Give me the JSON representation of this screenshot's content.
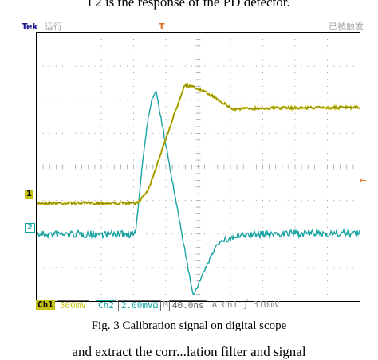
{
  "header_text": "l 2 is the response of the PD detector.",
  "scope": {
    "brand": "Tek",
    "run_state": "运行",
    "acq_state": "已被触发",
    "trigger_marker": "T",
    "ch1_marker": "1",
    "ch2_marker": "2",
    "trigger_level_marker": "←",
    "ch1_label": "Ch1",
    "ch1_scale": "500mV",
    "ch2_label": "Ch2",
    "ch2_scale": "2.00mVΩ",
    "time_prefix": "M",
    "time_scale": "40.0ns",
    "trigger_mode": "A",
    "trigger_source": "Ch1 ∫",
    "trigger_level": "310mV",
    "colors": {
      "ch1": "#c9c216",
      "ch2": "#1aa3a3",
      "trigger": "#e07020"
    }
  },
  "caption": "Fig. 3 Calibration signal on digital scope",
  "footer_text": "and extract the corr...lation filter and signal"
}
